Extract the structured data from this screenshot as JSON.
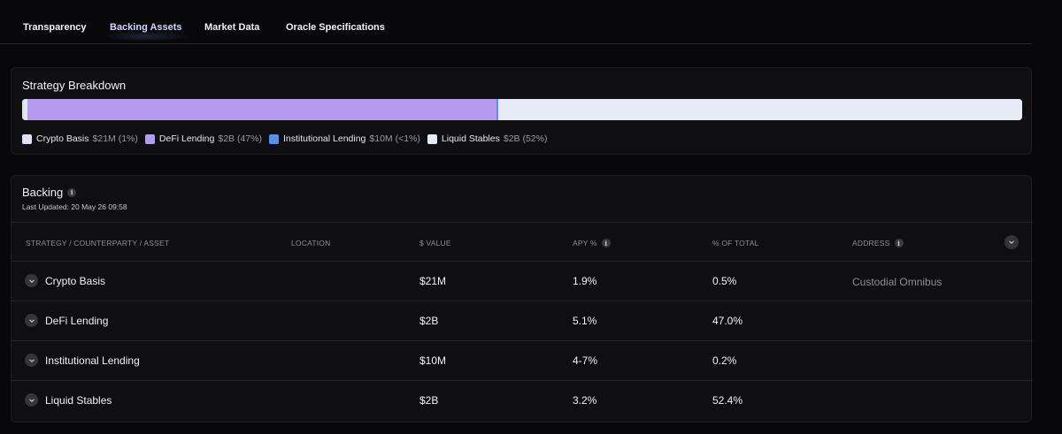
{
  "tabs": [
    {
      "label": "Transparency",
      "active": false
    },
    {
      "label": "Backing Assets",
      "active": true
    },
    {
      "label": "Market Data",
      "active": false
    },
    {
      "label": "Oracle Specifications",
      "active": false
    }
  ],
  "strategy": {
    "title": "Strategy Breakdown",
    "segments": [
      {
        "label": "Crypto Basis",
        "value": "$21M",
        "pct": "(1%)",
        "share": 0.5,
        "color": "#dfe3f7"
      },
      {
        "label": "DeFi Lending",
        "value": "$2B",
        "pct": "(47%)",
        "share": 47.0,
        "color": "#b59bf0"
      },
      {
        "label": "Institutional Lending",
        "value": "$10M",
        "pct": "(<1%)",
        "share": 0.2,
        "color": "#5b8fe0"
      },
      {
        "label": "Liquid Stables",
        "value": "$2B",
        "pct": "(52%)",
        "share": 52.4,
        "color": "#e6ebf6"
      }
    ]
  },
  "backing": {
    "title": "Backing",
    "info_icon": "info-icon",
    "last_updated": "Last Updated: 20 May 26 09:58",
    "columns": [
      {
        "label": "STRATEGY / COUNTERPARTY / ASSET",
        "info": false
      },
      {
        "label": "LOCATION",
        "info": false
      },
      {
        "label": "$ VALUE",
        "info": false
      },
      {
        "label": "APY %",
        "info": true
      },
      {
        "label": "% OF TOTAL",
        "info": false
      },
      {
        "label": "ADDRESS",
        "info": true
      }
    ],
    "rows": [
      {
        "name": "Crypto Basis",
        "location": "",
        "value": "$21M",
        "apy": "1.9%",
        "pct": "0.5%",
        "address": "Custodial Omnibus"
      },
      {
        "name": "DeFi Lending",
        "location": "",
        "value": "$2B",
        "apy": "5.1%",
        "pct": "47.0%",
        "address": ""
      },
      {
        "name": "Institutional Lending",
        "location": "",
        "value": "$10M",
        "apy": "4-7%",
        "pct": "0.2%",
        "address": ""
      },
      {
        "name": "Liquid Stables",
        "location": "",
        "value": "$2B",
        "apy": "3.2%",
        "pct": "52.4%",
        "address": ""
      }
    ]
  },
  "icons": {
    "row_expand": "chevron-down-icon",
    "expand_all": "chevron-down-icon"
  }
}
